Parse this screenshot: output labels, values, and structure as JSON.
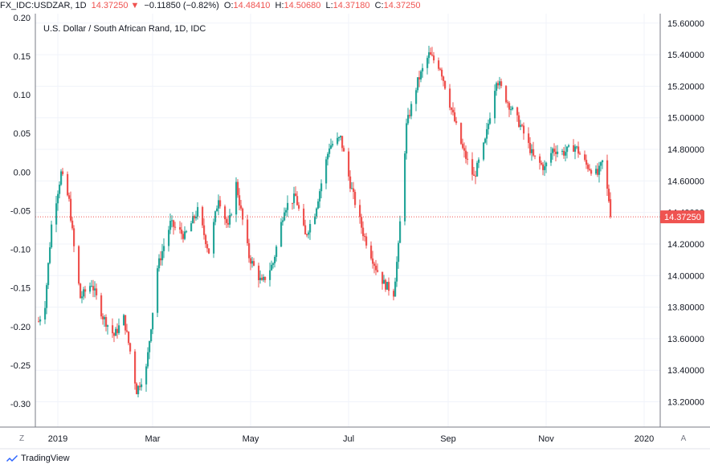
{
  "header": {
    "symbol": "FX_IDC:USDZAR, 1D",
    "last": "14.37250",
    "change_arrow": "▼",
    "change": "−0.11850 (−0.82%)",
    "open_label": "O:",
    "open": "14.48410",
    "high_label": "H:",
    "high": "14.50680",
    "low_label": "L:",
    "low": "14.37180",
    "close_label": "C:",
    "close": "14.37250"
  },
  "legend_title": "U.S. Dollar / South African Rand, 1D, IDC",
  "price_badge": "14.37250",
  "brand": "TradingView",
  "buttons": {
    "left": "Z",
    "right": "A"
  },
  "colors": {
    "up": "#26a69a",
    "down": "#ef5350",
    "grid": "#f0f3fa",
    "axis": "#131722"
  },
  "icons": {
    "brand": "tradingview-logo-icon",
    "arrow": "down-arrow-icon"
  },
  "chart_data": {
    "type": "candlestick",
    "title": "U.S. Dollar / South African Rand, 1D, IDC",
    "right_axis": {
      "ticks": [
        "15.60000",
        "15.40000",
        "15.20000",
        "15.00000",
        "14.80000",
        "14.60000",
        "14.40000",
        "14.20000",
        "14.00000",
        "13.80000",
        "13.60000",
        "13.40000",
        "13.20000"
      ],
      "range": [
        13.04,
        15.66
      ]
    },
    "left_axis": {
      "ticks": [
        "0.20",
        "0.15",
        "0.10",
        "0.05",
        "0.00",
        "-0.05",
        "-0.10",
        "-0.15",
        "-0.20",
        "-0.25",
        "-0.30"
      ],
      "range": [
        -0.33,
        0.205
      ],
      "scale": "percent change from first bar"
    },
    "x_ticks": [
      "2019",
      "Mar",
      "May",
      "Jul",
      "Sep",
      "Nov",
      "2020"
    ],
    "x_range": [
      "2018-12-18",
      "2020-01-11"
    ],
    "last_price_line": 14.3725,
    "series": [
      {
        "anchors": [
          [
            "2018-12-20",
            13.71
          ],
          [
            "2018-12-24",
            13.82
          ],
          [
            "2018-12-28",
            14.32
          ],
          [
            "2019-01-03",
            14.65
          ],
          [
            "2019-01-08",
            14.47
          ],
          [
            "2019-01-11",
            14.18
          ],
          [
            "2019-01-15",
            13.86
          ],
          [
            "2019-01-22",
            13.95
          ],
          [
            "2019-01-29",
            13.74
          ],
          [
            "2019-02-05",
            13.62
          ],
          [
            "2019-02-11",
            13.73
          ],
          [
            "2019-02-15",
            13.52
          ],
          [
            "2019-02-19",
            13.27
          ],
          [
            "2019-02-25",
            13.41
          ],
          [
            "2019-03-04",
            14.05
          ],
          [
            "2019-03-12",
            14.33
          ],
          [
            "2019-03-21",
            14.25
          ],
          [
            "2019-03-29",
            14.41
          ],
          [
            "2019-04-05",
            14.15
          ],
          [
            "2019-04-11",
            14.5
          ],
          [
            "2019-04-17",
            14.3
          ],
          [
            "2019-04-22",
            14.58
          ],
          [
            "2019-04-30",
            14.12
          ],
          [
            "2019-05-08",
            13.95
          ],
          [
            "2019-05-15",
            14.08
          ],
          [
            "2019-05-22",
            14.43
          ],
          [
            "2019-05-29",
            14.5
          ],
          [
            "2019-06-04",
            14.25
          ],
          [
            "2019-06-10",
            14.4
          ],
          [
            "2019-06-19",
            14.82
          ],
          [
            "2019-06-26",
            14.87
          ],
          [
            "2019-07-02",
            14.58
          ],
          [
            "2019-07-10",
            14.27
          ],
          [
            "2019-07-18",
            14.05
          ],
          [
            "2019-07-23",
            13.95
          ],
          [
            "2019-07-29",
            13.89
          ],
          [
            "2019-08-01",
            14.18
          ],
          [
            "2019-08-06",
            14.95
          ],
          [
            "2019-08-13",
            15.23
          ],
          [
            "2019-08-20",
            15.4
          ],
          [
            "2019-08-27",
            15.32
          ],
          [
            "2019-09-03",
            15.05
          ],
          [
            "2019-09-10",
            14.8
          ],
          [
            "2019-09-17",
            14.62
          ],
          [
            "2019-09-24",
            14.85
          ],
          [
            "2019-10-01",
            15.25
          ],
          [
            "2019-10-08",
            15.1
          ],
          [
            "2019-10-16",
            14.95
          ],
          [
            "2019-10-24",
            14.75
          ],
          [
            "2019-10-31",
            14.68
          ],
          [
            "2019-11-05",
            14.8
          ],
          [
            "2019-11-12",
            14.78
          ],
          [
            "2019-11-19",
            14.82
          ],
          [
            "2019-11-26",
            14.7
          ],
          [
            "2019-12-03",
            14.64
          ],
          [
            "2019-12-06",
            14.72
          ],
          [
            "2019-12-10",
            14.48
          ],
          [
            "2019-12-11",
            14.37
          ]
        ]
      }
    ]
  }
}
